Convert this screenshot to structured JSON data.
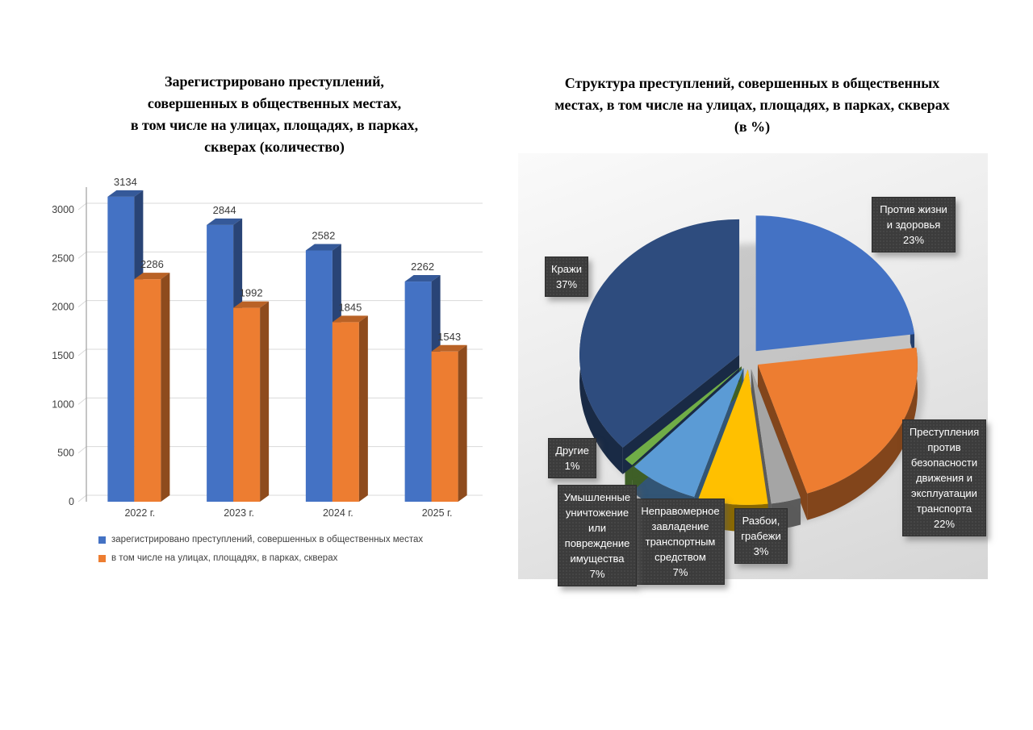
{
  "page": {
    "background": "#ffffff"
  },
  "chart_data": [
    {
      "type": "bar",
      "style": "3d-clustered-column",
      "title": "Зарегистрировано преступлений, совершенных в общественных местах, в том числе на улицах, площадях, в парках, скверах (количество)",
      "title_lines": [
        "Зарегистрировано преступлений,",
        "совершенных в общественных местах,",
        "в том числе на улицах, площадях, в парках,",
        "скверах (количество)"
      ],
      "categories": [
        "2022 г.",
        "2023 г.",
        "2024 г.",
        "2025 г."
      ],
      "series": [
        {
          "name": "зарегистрировано преступлений, совершенных в общественных местах",
          "color": "#4472C4",
          "values": [
            3134,
            2844,
            2582,
            2262
          ]
        },
        {
          "name": "в том числе на улицах, площадях, в парках, скверах",
          "color": "#ED7D31",
          "values": [
            2286,
            1992,
            1845,
            1543
          ]
        }
      ],
      "xlabel": "",
      "ylabel": "",
      "ylim": [
        0,
        3000
      ],
      "ytick_step": 500,
      "yticks": [
        0,
        500,
        1000,
        1500,
        2000,
        2500,
        3000
      ],
      "grid": true,
      "legend_position": "bottom-left",
      "data_labels": true
    },
    {
      "type": "pie",
      "style": "3d-pie-exploded",
      "title": "Структура преступлений, совершенных в общественных местах, в том числе на улицах, площадях, в парках, скверах (в %)",
      "title_lines": [
        "Структура преступлений, совершенных в общественных",
        "местах, в том числе на улицах, площадях, в парках, скверах",
        "(в %)"
      ],
      "start_angle": "top",
      "direction": "clockwise",
      "slices": [
        {
          "label": "Против жизни и здоровья",
          "value": 23,
          "color": "#4472C4"
        },
        {
          "label": "Преступления против безопасности движения и эксплуатации транспорта",
          "value": 22,
          "color": "#ED7D31"
        },
        {
          "label": "Разбои, грабежи",
          "value": 3,
          "color": "#A5A5A5"
        },
        {
          "label": "Неправомерное завладение транспортным средством",
          "value": 7,
          "color": "#FFC000"
        },
        {
          "label": "Умышленные уничтожение или повреждение имущества",
          "value": 7,
          "color": "#5B9BD5"
        },
        {
          "label": "Другие",
          "value": 1,
          "color": "#70AD47"
        },
        {
          "label": "Кражи",
          "value": 37,
          "color": "#2E4C7E"
        }
      ],
      "label_box_style": {
        "background": "#3c3c3c",
        "text_color": "#ffffff"
      }
    }
  ]
}
